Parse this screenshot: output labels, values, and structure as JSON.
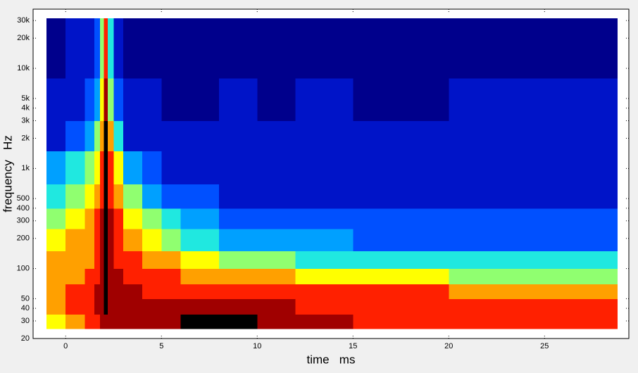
{
  "chart_data": {
    "type": "heatmap",
    "x_label": "time   ms",
    "y_label": "frequency   Hz",
    "xlim": [
      -1.7,
      29.4
    ],
    "xticks": [
      0,
      5,
      10,
      15,
      20,
      25
    ],
    "ylim": [
      20,
      39000
    ],
    "log_y": true,
    "yticks": [
      20,
      30,
      40,
      50,
      100,
      200,
      300,
      400,
      500,
      {
        "value": 1000,
        "label": "1k"
      },
      {
        "value": 2000,
        "label": "2k"
      },
      {
        "value": 3000,
        "label": "3k"
      },
      {
        "value": 4000,
        "label": "4k"
      },
      {
        "value": 5000,
        "label": "5k"
      },
      {
        "value": 10000,
        "label": "10k"
      },
      {
        "value": 20000,
        "label": "20k"
      },
      {
        "value": 30000,
        "label": "30k"
      }
    ],
    "colormap": [
      "#00008c",
      "#0014c8",
      "#0050ff",
      "#00a0ff",
      "#20e8e0",
      "#90ff70",
      "#ffff00",
      "#ffa000",
      "#ff2000",
      "#a00000",
      "#000000"
    ],
    "x_edges": [
      -1,
      0,
      1,
      1.5,
      1.8,
      2,
      2.2,
      2.5,
      3,
      4,
      5,
      6,
      8,
      10,
      12,
      15,
      20,
      28.8
    ],
    "y_edges": [
      25,
      35,
      50,
      70,
      100,
      150,
      250,
      400,
      700,
      1500,
      3000,
      8000,
      31600
    ],
    "z": [
      [
        6,
        7,
        8,
        8,
        9,
        9,
        9,
        9,
        9,
        9,
        9,
        10,
        10,
        9,
        9,
        8,
        8
      ],
      [
        7,
        8,
        8,
        9,
        9,
        10,
        9,
        9,
        9,
        9,
        9,
        9,
        9,
        9,
        8,
        8,
        8
      ],
      [
        7,
        8,
        8,
        9,
        9,
        10,
        9,
        9,
        9,
        8,
        8,
        8,
        8,
        8,
        8,
        8,
        7
      ],
      [
        7,
        7,
        8,
        8,
        9,
        10,
        9,
        9,
        8,
        8,
        8,
        7,
        7,
        7,
        6,
        6,
        5
      ],
      [
        7,
        7,
        7,
        8,
        9,
        10,
        9,
        8,
        8,
        7,
        7,
        6,
        5,
        5,
        4,
        4,
        4
      ],
      [
        6,
        7,
        7,
        8,
        9,
        10,
        9,
        8,
        7,
        6,
        5,
        4,
        3,
        3,
        3,
        2,
        2
      ],
      [
        5,
        6,
        7,
        8,
        9,
        10,
        9,
        8,
        6,
        5,
        4,
        3,
        2,
        2,
        2,
        2,
        2
      ],
      [
        4,
        5,
        6,
        7,
        8,
        10,
        8,
        7,
        5,
        3,
        2,
        2,
        1,
        1,
        1,
        1,
        1
      ],
      [
        3,
        4,
        5,
        6,
        8,
        10,
        8,
        6,
        3,
        2,
        1,
        1,
        1,
        1,
        1,
        1,
        1
      ],
      [
        1,
        2,
        3,
        5,
        7,
        10,
        7,
        4,
        1,
        1,
        1,
        1,
        1,
        1,
        1,
        1,
        1
      ],
      [
        1,
        1,
        2,
        3,
        6,
        9,
        5,
        2,
        1,
        1,
        0,
        0,
        1,
        0,
        1,
        0,
        1
      ],
      [
        0,
        1,
        1,
        2,
        5,
        8,
        4,
        1,
        0,
        0,
        0,
        0,
        0,
        0,
        0,
        0,
        0
      ]
    ]
  }
}
